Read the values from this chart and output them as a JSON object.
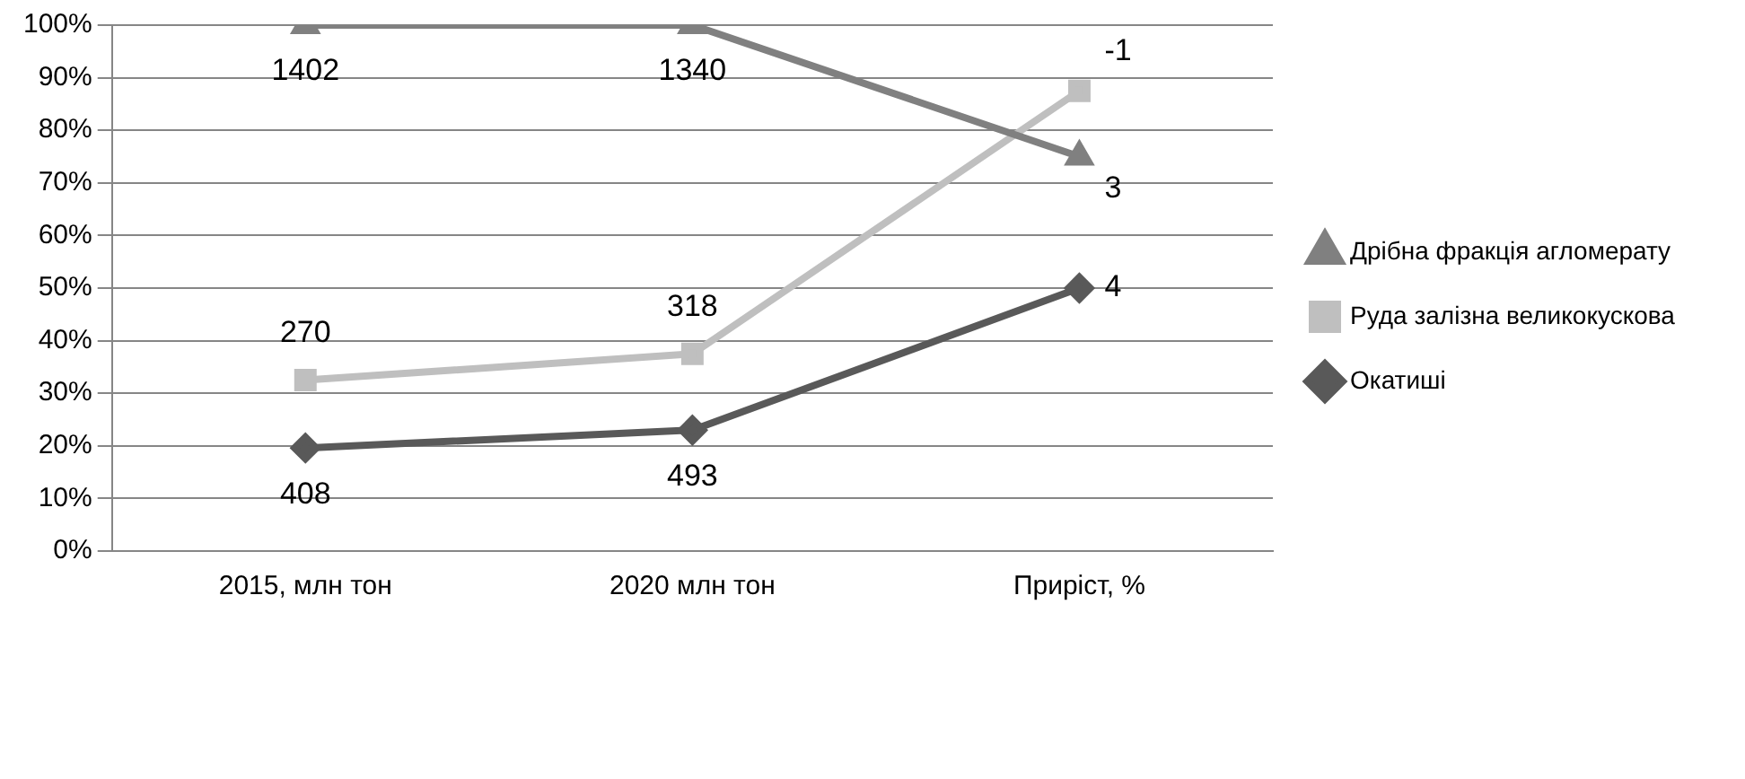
{
  "chart_data": {
    "type": "line",
    "categories": [
      "2015, млн тон",
      "2020 млн тон",
      "Приріст, %"
    ],
    "series": [
      {
        "name": "Дрібна фракція агломерату",
        "color": "#808080",
        "marker": "triangle",
        "values": [
          100,
          100,
          75
        ]
      },
      {
        "name": "Руда залізна великокускова",
        "color": "#bfbfbf",
        "marker": "square",
        "values": [
          32.5,
          37.5,
          87.5
        ]
      },
      {
        "name": "Окатиші",
        "color": "#595959",
        "marker": "diamond",
        "values": [
          19.6,
          23,
          50
        ]
      }
    ],
    "annotations": [
      {
        "text": "1402",
        "x": "2015, млн тон",
        "y": 100
      },
      {
        "text": "1340",
        "x": "2020 млн тон",
        "y": 100
      },
      {
        "text": "3",
        "x": "Приріст, %",
        "y": 75
      },
      {
        "text": "270",
        "x": "2015, млн тон",
        "y": 32.5
      },
      {
        "text": "318",
        "x": "2020 млн тон",
        "y": 37.5
      },
      {
        "text": "-1",
        "x": "Приріст, %",
        "y": 87.5
      },
      {
        "text": "408",
        "x": "2015, млн тон",
        "y": 19.6
      },
      {
        "text": "493",
        "x": "2020 млн тон",
        "y": 23
      },
      {
        "text": "4",
        "x": "Приріст, %",
        "y": 50
      }
    ],
    "ylim": [
      0,
      100
    ],
    "yticks": [
      {
        "value": 0,
        "label": "0%"
      },
      {
        "value": 10,
        "label": "10%"
      },
      {
        "value": 20,
        "label": "20%"
      },
      {
        "value": 30,
        "label": "30%"
      },
      {
        "value": 40,
        "label": "40%"
      },
      {
        "value": 50,
        "label": "50%"
      },
      {
        "value": 60,
        "label": "60%"
      },
      {
        "value": 70,
        "label": "70%"
      },
      {
        "value": 80,
        "label": "80%"
      },
      {
        "value": 90,
        "label": "90%"
      },
      {
        "value": 100,
        "label": "100%"
      }
    ],
    "grid": "y",
    "legend": "right"
  }
}
